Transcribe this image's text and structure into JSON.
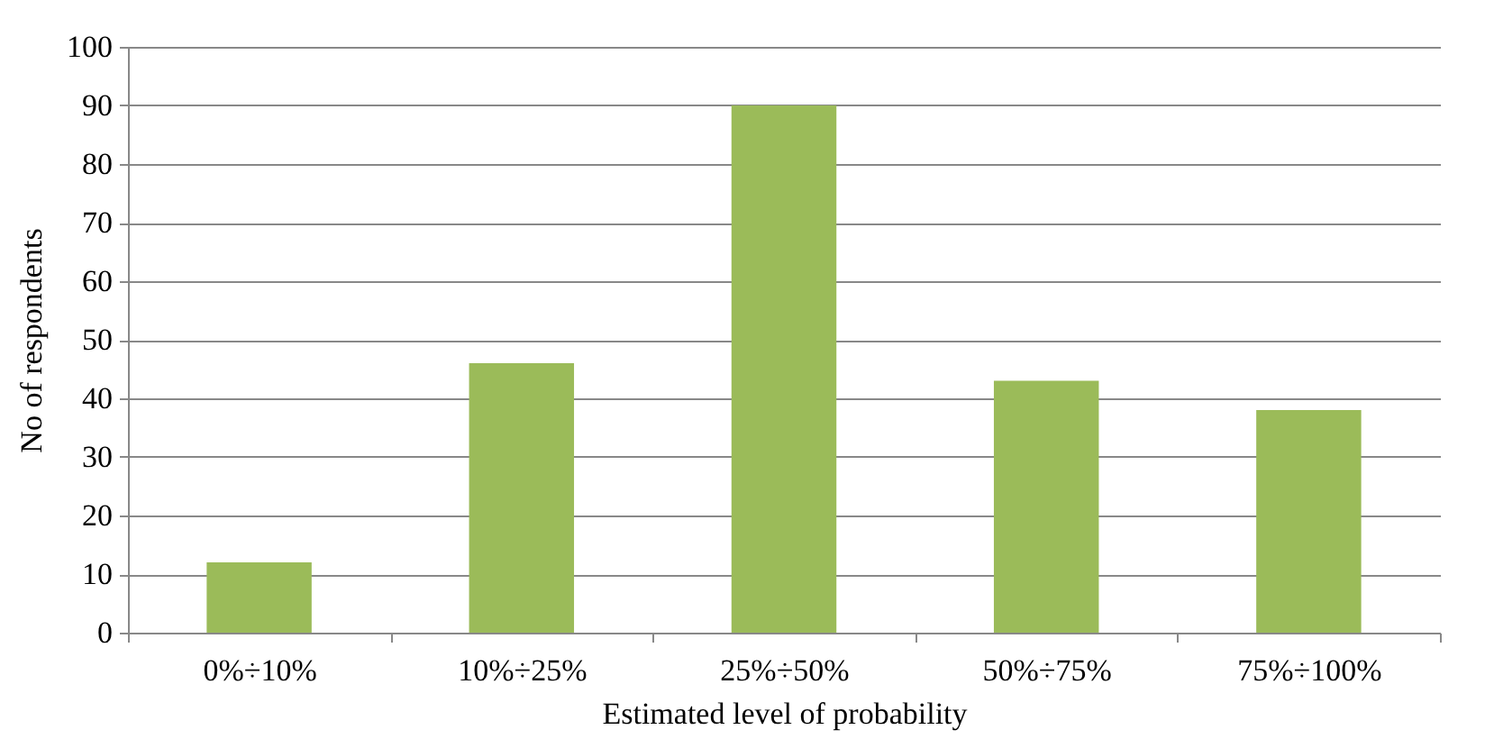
{
  "chart_data": {
    "type": "bar",
    "xlabel": "Estimated level of probability",
    "ylabel": "No of respondents",
    "categories": [
      "0%÷10%",
      "10%÷25%",
      "25%÷50%",
      "50%÷75%",
      "75%÷100%"
    ],
    "values": [
      12,
      46,
      90,
      43,
      38
    ],
    "color": "#9bbb59",
    "ylim": [
      0,
      100
    ],
    "yticks": [
      0,
      10,
      20,
      30,
      40,
      50,
      60,
      70,
      80,
      90,
      100
    ],
    "grid": "y"
  }
}
